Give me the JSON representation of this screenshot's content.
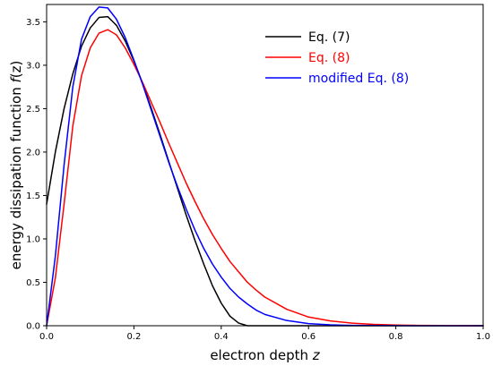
{
  "chart_data": {
    "type": "line",
    "xlabel": {
      "prefix": "electron depth ",
      "variable": "z"
    },
    "ylabel": {
      "prefix": "energy dissipation function ",
      "variable": "f",
      "suffix": "(z)"
    },
    "xlim": [
      0.0,
      1.0
    ],
    "ylim": [
      0.0,
      3.7
    ],
    "x_ticks": [
      0.0,
      0.2,
      0.4,
      0.6,
      0.8,
      1.0
    ],
    "x_tick_labels": [
      "0.0",
      "0.2",
      "0.4",
      "0.6",
      "0.8",
      "1.0"
    ],
    "y_ticks": [
      0.0,
      0.5,
      1.0,
      1.5,
      2.0,
      2.5,
      3.0,
      3.5
    ],
    "y_tick_labels": [
      "0.0",
      "0.5",
      "1.0",
      "1.5",
      "2.0",
      "2.5",
      "3.0",
      "3.5"
    ],
    "grid": false,
    "legend_position": "top-right",
    "series": [
      {
        "name": "Eq. (7)",
        "color": "#000000",
        "x": [
          0.0,
          0.02,
          0.04,
          0.06,
          0.08,
          0.1,
          0.12,
          0.14,
          0.16,
          0.18,
          0.2,
          0.22,
          0.24,
          0.26,
          0.28,
          0.3,
          0.32,
          0.34,
          0.36,
          0.38,
          0.4,
          0.42,
          0.44,
          0.46,
          0.48,
          0.5,
          0.55,
          0.6,
          0.7,
          0.8,
          0.9,
          1.0
        ],
        "y": [
          1.4,
          2.0,
          2.5,
          2.9,
          3.22,
          3.43,
          3.55,
          3.56,
          3.46,
          3.28,
          3.05,
          2.79,
          2.5,
          2.2,
          1.89,
          1.58,
          1.27,
          0.98,
          0.71,
          0.46,
          0.26,
          0.11,
          0.03,
          0.0,
          0.0,
          0.0,
          0.0,
          0.0,
          0.0,
          0.0,
          0.0,
          0.0
        ]
      },
      {
        "name": "Eq. (8)",
        "color": "#ff0000",
        "x": [
          0.0,
          0.02,
          0.04,
          0.06,
          0.08,
          0.1,
          0.12,
          0.14,
          0.16,
          0.18,
          0.2,
          0.22,
          0.24,
          0.26,
          0.28,
          0.3,
          0.32,
          0.34,
          0.36,
          0.38,
          0.4,
          0.42,
          0.44,
          0.46,
          0.48,
          0.5,
          0.55,
          0.6,
          0.65,
          0.7,
          0.75,
          0.8,
          0.85,
          0.9,
          0.95,
          1.0
        ],
        "y": [
          0.0,
          0.55,
          1.4,
          2.3,
          2.88,
          3.2,
          3.37,
          3.41,
          3.35,
          3.2,
          3.01,
          2.8,
          2.57,
          2.34,
          2.1,
          1.87,
          1.64,
          1.43,
          1.23,
          1.05,
          0.89,
          0.74,
          0.62,
          0.5,
          0.41,
          0.33,
          0.19,
          0.1,
          0.055,
          0.03,
          0.015,
          0.008,
          0.004,
          0.002,
          0.001,
          0.0
        ]
      },
      {
        "name": "modified Eq. (8)",
        "color": "#0000ff",
        "x": [
          0.0,
          0.02,
          0.04,
          0.06,
          0.08,
          0.1,
          0.12,
          0.14,
          0.16,
          0.18,
          0.2,
          0.22,
          0.24,
          0.26,
          0.28,
          0.3,
          0.32,
          0.34,
          0.36,
          0.38,
          0.4,
          0.42,
          0.44,
          0.46,
          0.48,
          0.5,
          0.55,
          0.6,
          0.65,
          0.7,
          0.75,
          0.8,
          0.85,
          0.9,
          0.95,
          1.0
        ],
        "y": [
          0.0,
          0.8,
          1.85,
          2.75,
          3.3,
          3.56,
          3.67,
          3.66,
          3.53,
          3.32,
          3.06,
          2.78,
          2.48,
          2.18,
          1.88,
          1.6,
          1.34,
          1.1,
          0.89,
          0.71,
          0.56,
          0.43,
          0.33,
          0.25,
          0.18,
          0.13,
          0.06,
          0.025,
          0.01,
          0.004,
          0.002,
          0.001,
          0.0,
          0.0,
          0.0,
          0.0
        ]
      }
    ]
  }
}
